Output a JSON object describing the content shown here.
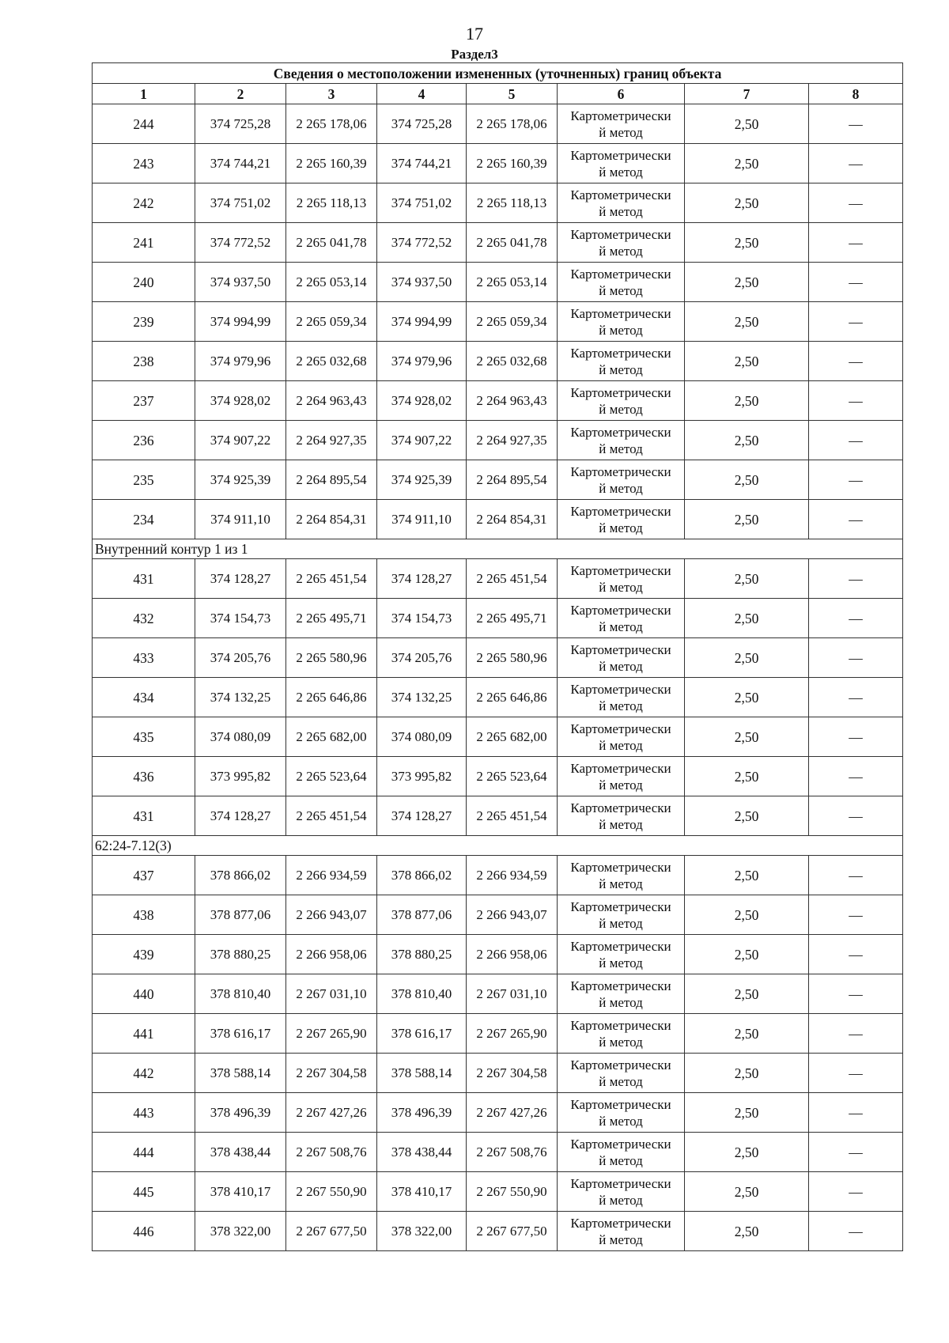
{
  "page_number": "17",
  "section_title": "Раздел3",
  "table": {
    "title": "Сведения о местоположении измененных (уточненных) границ объекта",
    "columns": [
      "1",
      "2",
      "3",
      "4",
      "5",
      "6",
      "7",
      "8"
    ],
    "method_line1": "Картометрически",
    "method_line2": "й метод",
    "groups": [
      {
        "label": "",
        "rows": [
          [
            "244",
            "374 725,28",
            "2 265 178,06",
            "374 725,28",
            "2 265 178,06",
            "2,50",
            "—"
          ],
          [
            "243",
            "374 744,21",
            "2 265 160,39",
            "374 744,21",
            "2 265 160,39",
            "2,50",
            "—"
          ],
          [
            "242",
            "374 751,02",
            "2 265 118,13",
            "374 751,02",
            "2 265 118,13",
            "2,50",
            "—"
          ],
          [
            "241",
            "374 772,52",
            "2 265 041,78",
            "374 772,52",
            "2 265 041,78",
            "2,50",
            "—"
          ],
          [
            "240",
            "374 937,50",
            "2 265 053,14",
            "374 937,50",
            "2 265 053,14",
            "2,50",
            "—"
          ],
          [
            "239",
            "374 994,99",
            "2 265 059,34",
            "374 994,99",
            "2 265 059,34",
            "2,50",
            "—"
          ],
          [
            "238",
            "374 979,96",
            "2 265 032,68",
            "374 979,96",
            "2 265 032,68",
            "2,50",
            "—"
          ],
          [
            "237",
            "374 928,02",
            "2 264 963,43",
            "374 928,02",
            "2 264 963,43",
            "2,50",
            "—"
          ],
          [
            "236",
            "374 907,22",
            "2 264 927,35",
            "374 907,22",
            "2 264 927,35",
            "2,50",
            "—"
          ],
          [
            "235",
            "374 925,39",
            "2 264 895,54",
            "374 925,39",
            "2 264 895,54",
            "2,50",
            "—"
          ],
          [
            "234",
            "374 911,10",
            "2 264 854,31",
            "374 911,10",
            "2 264 854,31",
            "2,50",
            "—"
          ]
        ]
      },
      {
        "label": "Внутренний контур 1 из 1",
        "rows": [
          [
            "431",
            "374 128,27",
            "2 265 451,54",
            "374 128,27",
            "2 265 451,54",
            "2,50",
            "—"
          ],
          [
            "432",
            "374 154,73",
            "2 265 495,71",
            "374 154,73",
            "2 265 495,71",
            "2,50",
            "—"
          ],
          [
            "433",
            "374 205,76",
            "2 265 580,96",
            "374 205,76",
            "2 265 580,96",
            "2,50",
            "—"
          ],
          [
            "434",
            "374 132,25",
            "2 265 646,86",
            "374 132,25",
            "2 265 646,86",
            "2,50",
            "—"
          ],
          [
            "435",
            "374 080,09",
            "2 265 682,00",
            "374 080,09",
            "2 265 682,00",
            "2,50",
            "—"
          ],
          [
            "436",
            "373 995,82",
            "2 265 523,64",
            "373 995,82",
            "2 265 523,64",
            "2,50",
            "—"
          ],
          [
            "431",
            "374 128,27",
            "2 265 451,54",
            "374 128,27",
            "2 265 451,54",
            "2,50",
            "—"
          ]
        ]
      },
      {
        "label": "62:24-7.12(3)",
        "rows": [
          [
            "437",
            "378 866,02",
            "2 266 934,59",
            "378 866,02",
            "2 266 934,59",
            "2,50",
            "—"
          ],
          [
            "438",
            "378 877,06",
            "2 266 943,07",
            "378 877,06",
            "2 266 943,07",
            "2,50",
            "—"
          ],
          [
            "439",
            "378 880,25",
            "2 266 958,06",
            "378 880,25",
            "2 266 958,06",
            "2,50",
            "—"
          ],
          [
            "440",
            "378 810,40",
            "2 267 031,10",
            "378 810,40",
            "2 267 031,10",
            "2,50",
            "—"
          ],
          [
            "441",
            "378 616,17",
            "2 267 265,90",
            "378 616,17",
            "2 267 265,90",
            "2,50",
            "—"
          ],
          [
            "442",
            "378 588,14",
            "2 267 304,58",
            "378 588,14",
            "2 267 304,58",
            "2,50",
            "—"
          ],
          [
            "443",
            "378 496,39",
            "2 267 427,26",
            "378 496,39",
            "2 267 427,26",
            "2,50",
            "—"
          ],
          [
            "444",
            "378 438,44",
            "2 267 508,76",
            "378 438,44",
            "2 267 508,76",
            "2,50",
            "—"
          ],
          [
            "445",
            "378 410,17",
            "2 267 550,90",
            "378 410,17",
            "2 267 550,90",
            "2,50",
            "—"
          ],
          [
            "446",
            "378 322,00",
            "2 267 677,50",
            "378 322,00",
            "2 267 677,50",
            "2,50",
            "—"
          ]
        ]
      }
    ]
  }
}
